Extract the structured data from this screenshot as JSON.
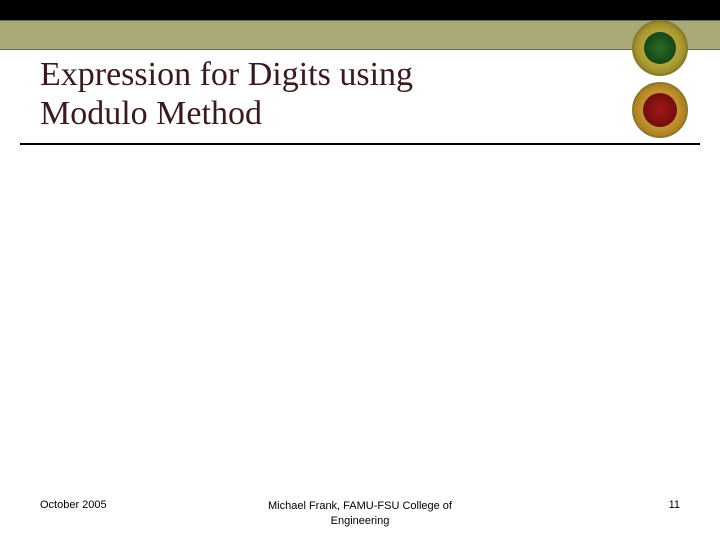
{
  "colors": {
    "top_bar": "#000000",
    "olive_bar": "#a9a877",
    "title_text": "#3a1a1a",
    "underline": "#000000",
    "background": "#ffffff",
    "footer_text": "#000000"
  },
  "title": {
    "line1": "Expression for Digits using",
    "line2": "Modulo Method",
    "fontsize": 34
  },
  "footer": {
    "date": "October 2005",
    "attribution_line1": "Michael Frank, FAMU-FSU College of",
    "attribution_line2": "Engineering",
    "page_number": "11",
    "fontsize": 11
  },
  "logos": {
    "top": {
      "name": "famu-seal",
      "outer_color": "#a89830",
      "inner_color": "#2a6a2a"
    },
    "bottom": {
      "name": "fsu-seal",
      "outer_color": "#b08020",
      "inner_color": "#a01818"
    }
  }
}
